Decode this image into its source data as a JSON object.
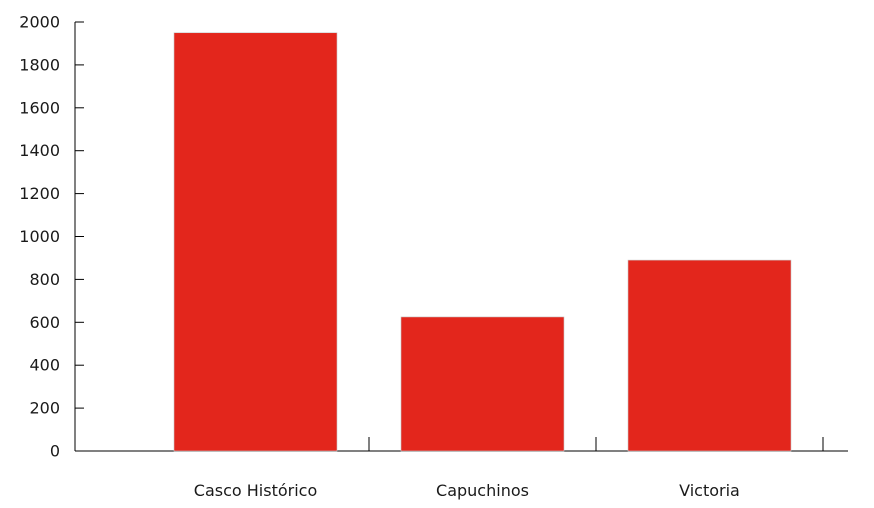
{
  "chart_data": {
    "type": "bar",
    "title": "",
    "xlabel": "",
    "ylabel": "",
    "categories": [
      "Casco Histórico",
      "Capuchinos",
      "Victoria"
    ],
    "values": [
      1950,
      625,
      890
    ],
    "ylim": [
      0,
      2000
    ],
    "yticks": [
      "0",
      "200",
      "400",
      "600",
      "800",
      "1000",
      "1200",
      "1400",
      "1600",
      "1800",
      "2000"
    ],
    "bar_color": "#e3261c",
    "grid": false,
    "legend": "none"
  }
}
